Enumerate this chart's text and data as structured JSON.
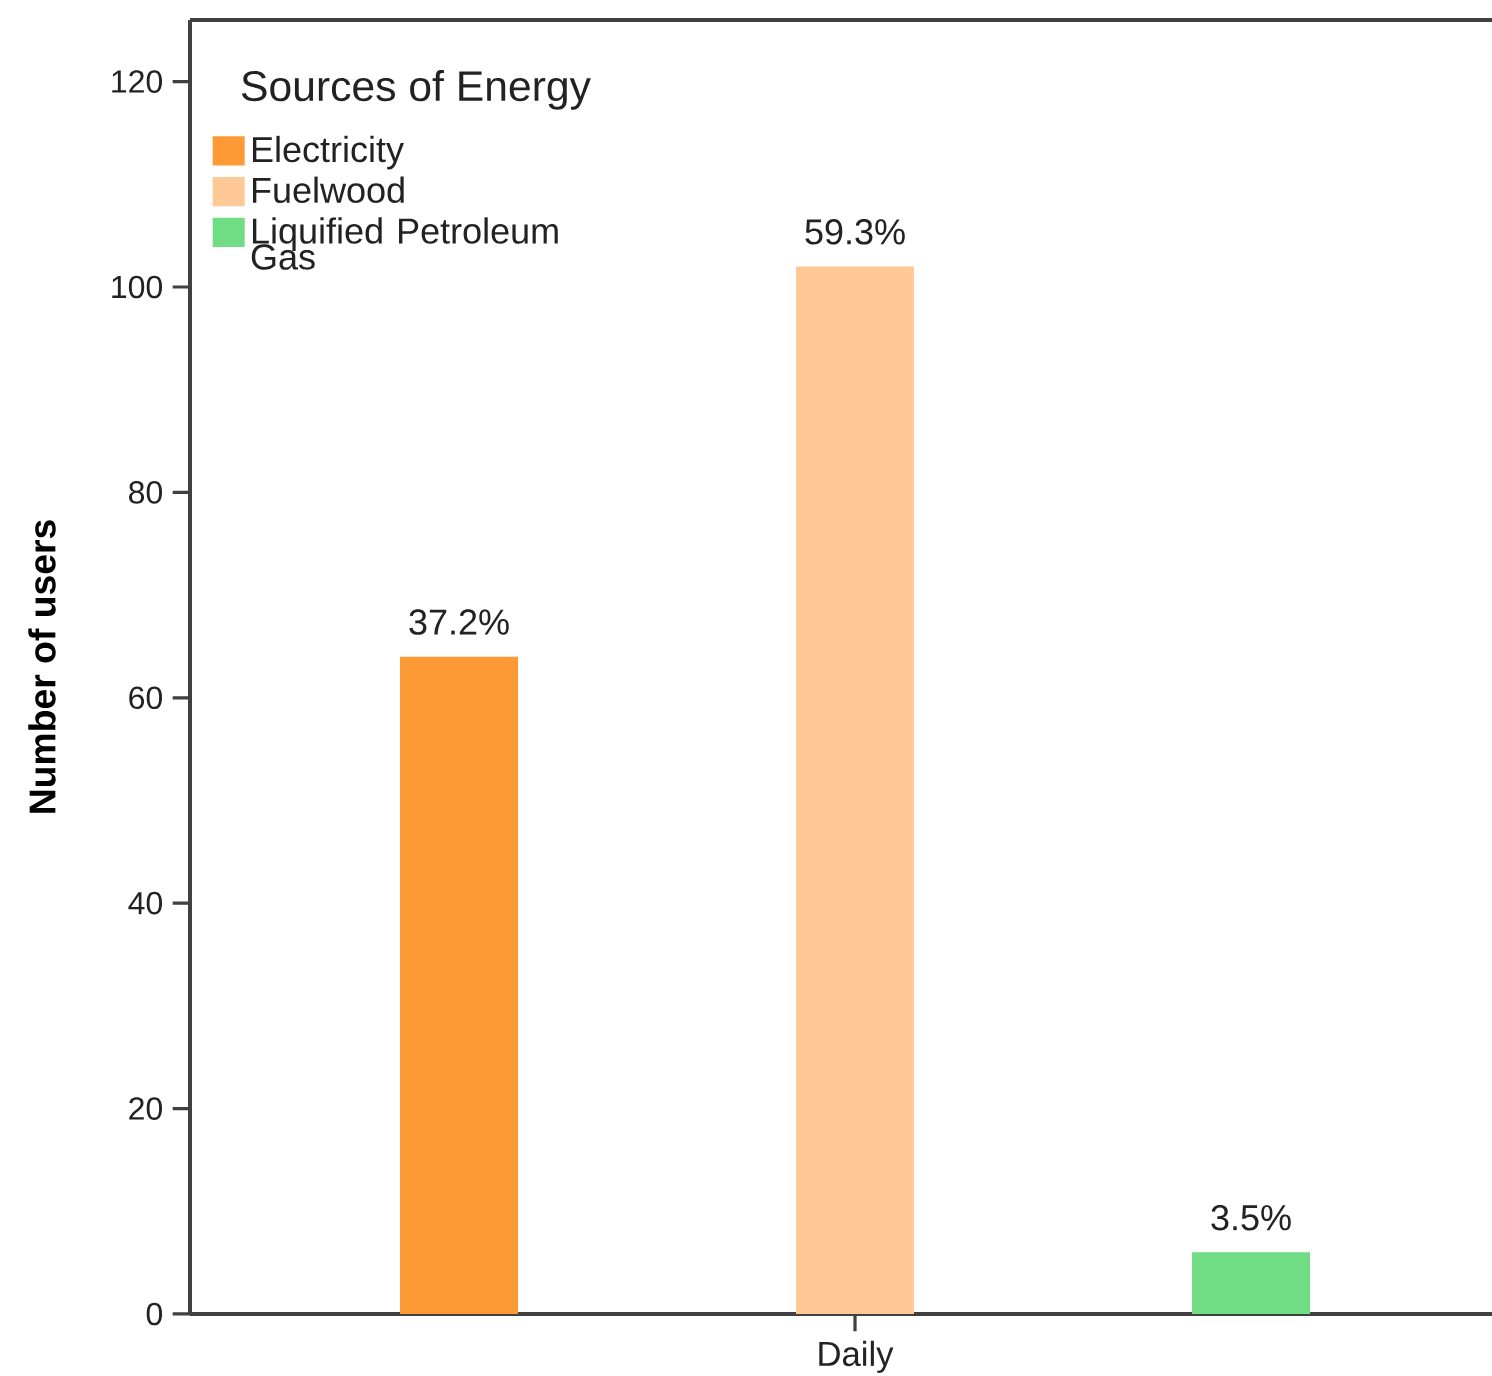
{
  "chart_data": {
    "type": "bar",
    "categories": [
      "Daily"
    ],
    "ylabel": "Number of users",
    "legend_title": "Sources of Energy",
    "legend": "top left",
    "series": [
      {
        "name": "Electricity",
        "color": "#fe9a36",
        "values": [
          64
        ]
      },
      {
        "name": "Fuelwood",
        "color": "#fec897",
        "values": [
          102
        ]
      },
      {
        "name": "Liquified Petroleum Gas",
        "color": "#70dd84",
        "values": [
          6
        ]
      }
    ],
    "annotations": [
      "37.2%",
      "59.3%",
      "3.5%"
    ],
    "ylim": [
      0,
      126
    ],
    "yticks": [
      0,
      20,
      40,
      60,
      80,
      100,
      120
    ]
  }
}
